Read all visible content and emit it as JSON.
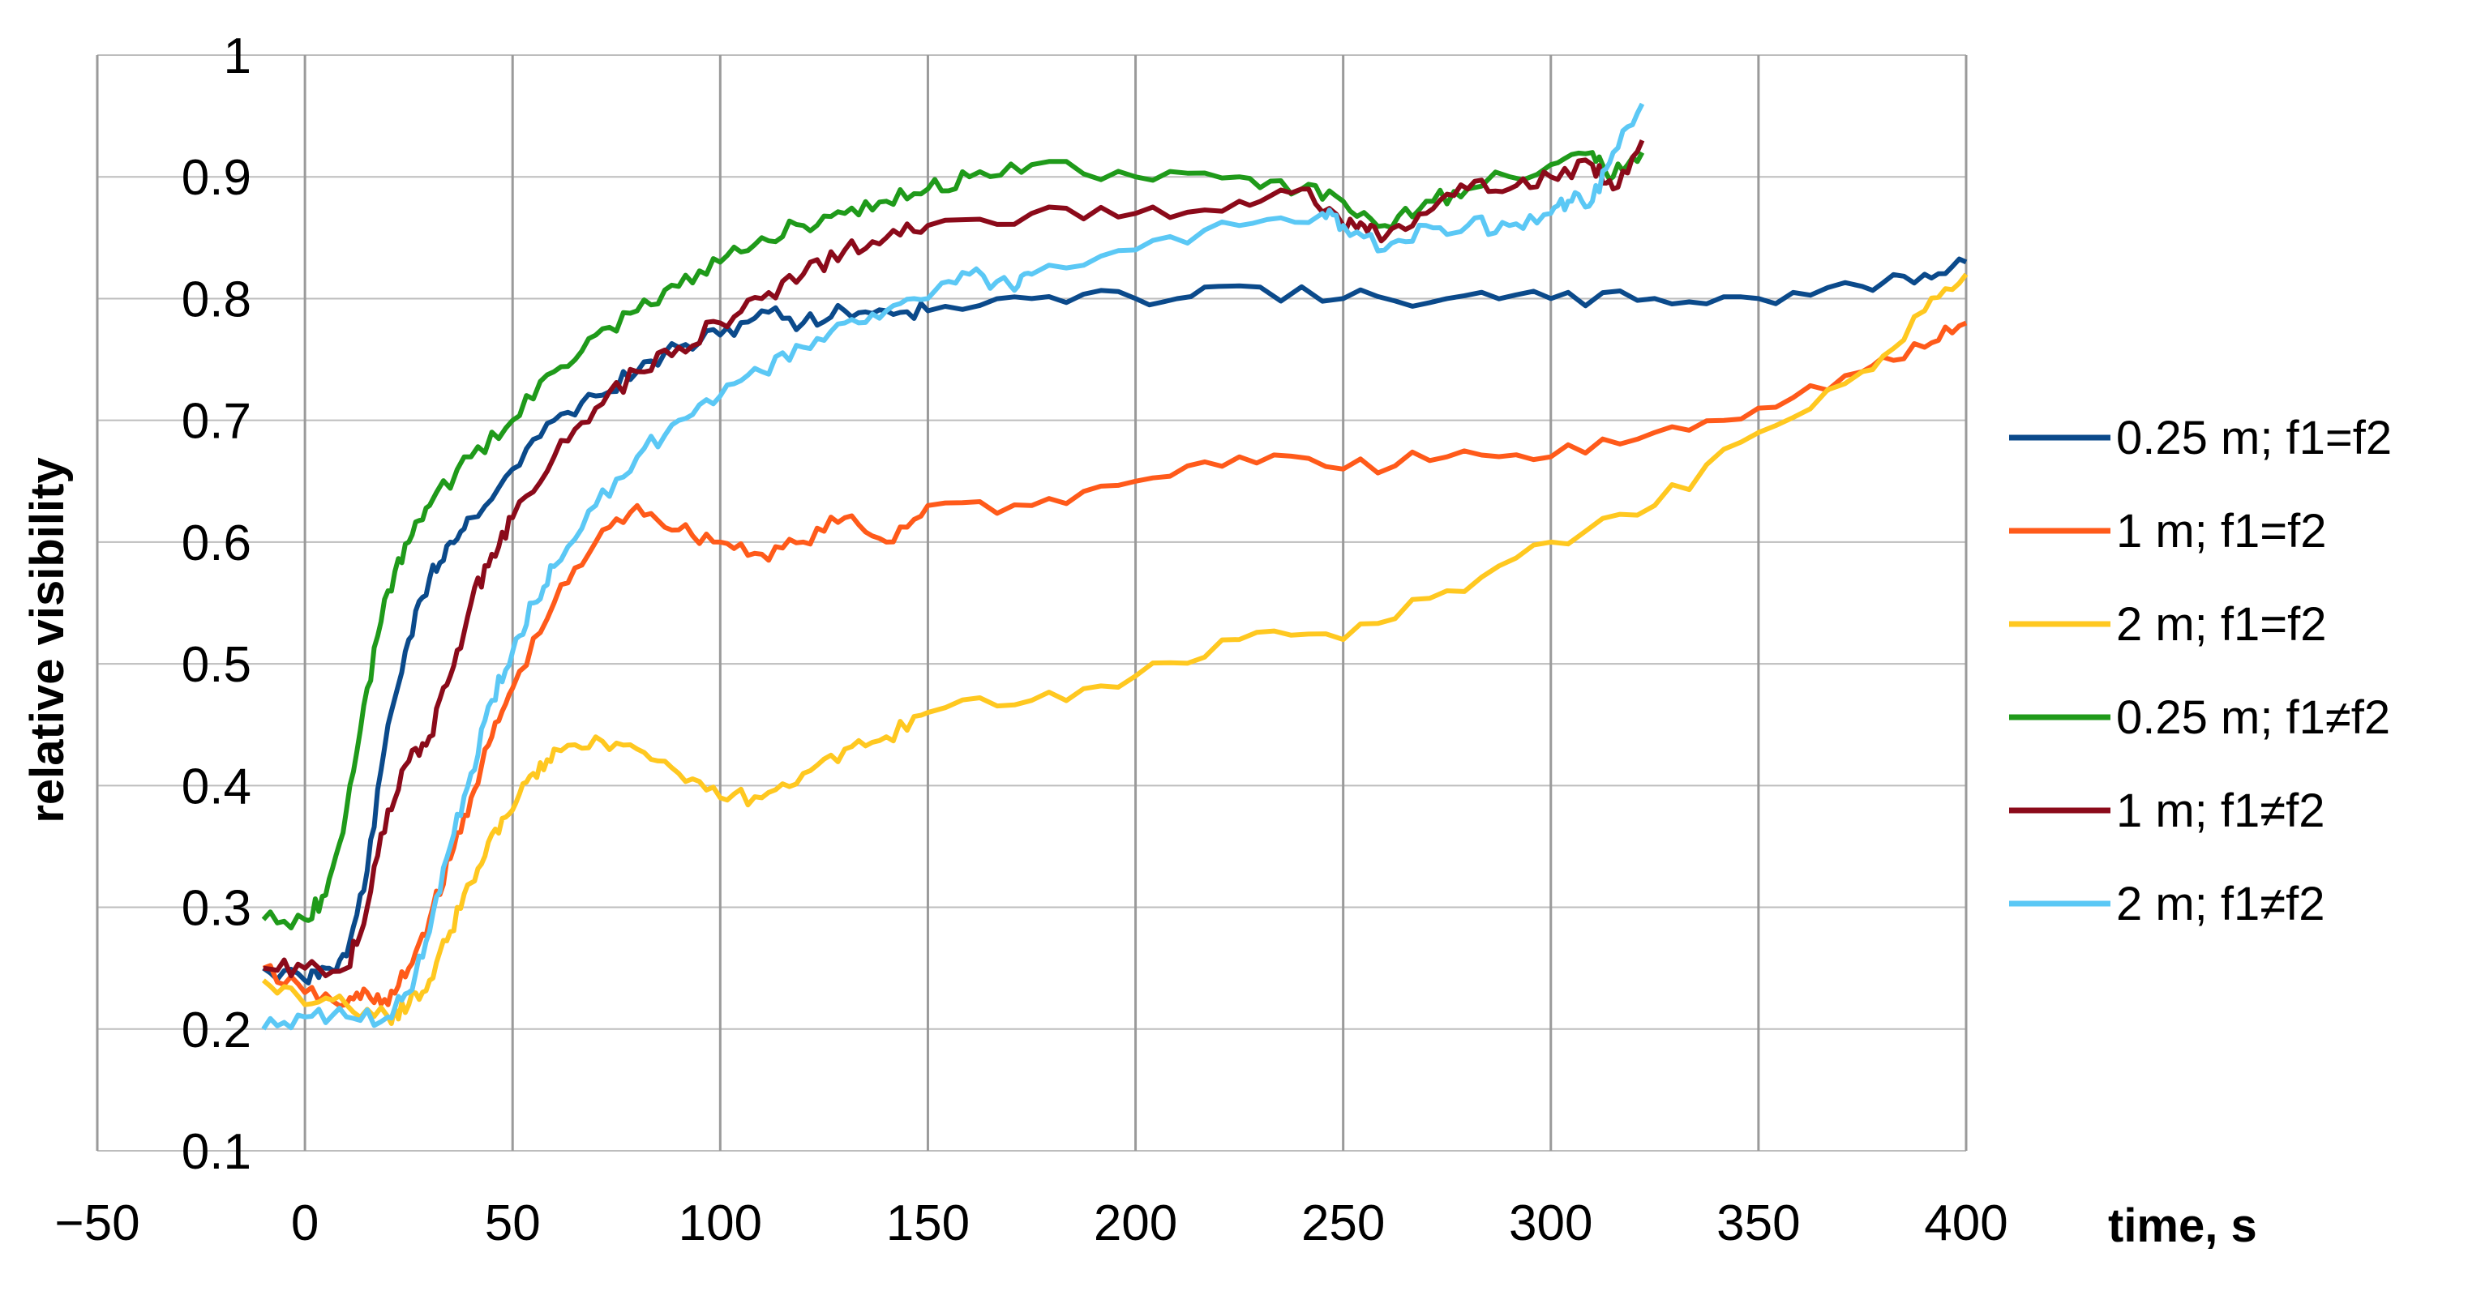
{
  "chart_data": {
    "type": "line",
    "title": "",
    "xlabel": "time, s",
    "ylabel": "relative visibility",
    "xlim": [
      -50,
      400
    ],
    "ylim": [
      0.1,
      1
    ],
    "x_ticks": [
      -50,
      0,
      50,
      100,
      150,
      200,
      250,
      300,
      350,
      400
    ],
    "x_tick_labels": [
      "−50",
      "0",
      "50",
      "100",
      "150",
      "200",
      "250",
      "300",
      "350",
      "400"
    ],
    "y_ticks": [
      0.1,
      0.2,
      0.3,
      0.4,
      0.5,
      0.6,
      0.7,
      0.8,
      0.9,
      1
    ],
    "y_tick_labels": [
      "0.1",
      "0.2",
      "0.3",
      "0.4",
      "0.5",
      "0.6",
      "0.7",
      "0.8",
      "0.9",
      "1"
    ],
    "grid": "vertical and horizontal",
    "legend_position": "right",
    "series": [
      {
        "name": "0.25 m; f1=f2",
        "color": "#0B4A8B",
        "x": [
          -10,
          0,
          5,
          10,
          15,
          20,
          25,
          30,
          35,
          40,
          50,
          60,
          70,
          80,
          90,
          100,
          110,
          120,
          130,
          140,
          150,
          175,
          200,
          220,
          250,
          275,
          300,
          325,
          350,
          375,
          390,
          400
        ],
        "y": [
          0.25,
          0.24,
          0.25,
          0.26,
          0.33,
          0.45,
          0.52,
          0.57,
          0.6,
          0.62,
          0.66,
          0.7,
          0.72,
          0.74,
          0.76,
          0.77,
          0.79,
          0.78,
          0.79,
          0.79,
          0.79,
          0.8,
          0.8,
          0.81,
          0.8,
          0.8,
          0.8,
          0.8,
          0.8,
          0.81,
          0.82,
          0.83
        ]
      },
      {
        "name": "1 m; f1=f2",
        "color": "#FF5A1A",
        "x": [
          -10,
          0,
          10,
          15,
          20,
          25,
          30,
          35,
          40,
          45,
          50,
          60,
          70,
          80,
          90,
          100,
          110,
          120,
          130,
          140,
          150,
          175,
          200,
          225,
          250,
          275,
          300,
          325,
          350,
          375,
          390,
          400
        ],
        "y": [
          0.25,
          0.23,
          0.22,
          0.23,
          0.22,
          0.25,
          0.29,
          0.34,
          0.39,
          0.44,
          0.48,
          0.55,
          0.6,
          0.63,
          0.61,
          0.6,
          0.59,
          0.6,
          0.62,
          0.6,
          0.63,
          0.63,
          0.65,
          0.67,
          0.66,
          0.67,
          0.67,
          0.69,
          0.71,
          0.74,
          0.76,
          0.78
        ]
      },
      {
        "name": "2 m; f1=f2",
        "color": "#FFC820",
        "x": [
          -10,
          0,
          10,
          20,
          25,
          30,
          35,
          40,
          45,
          50,
          55,
          60,
          70,
          80,
          90,
          100,
          110,
          120,
          130,
          140,
          150,
          175,
          200,
          225,
          250,
          275,
          300,
          325,
          350,
          375,
          390,
          400
        ],
        "y": [
          0.24,
          0.22,
          0.22,
          0.21,
          0.22,
          0.24,
          0.28,
          0.32,
          0.36,
          0.38,
          0.41,
          0.43,
          0.44,
          0.43,
          0.41,
          0.39,
          0.39,
          0.41,
          0.43,
          0.44,
          0.46,
          0.47,
          0.49,
          0.52,
          0.52,
          0.56,
          0.6,
          0.63,
          0.69,
          0.74,
          0.79,
          0.82
        ]
      },
      {
        "name": "0.25 m; f1≠f2",
        "color": "#1F9A1A",
        "x": [
          -10,
          0,
          5,
          10,
          15,
          20,
          25,
          30,
          40,
          50,
          60,
          70,
          80,
          90,
          100,
          110,
          120,
          130,
          140,
          150,
          160,
          175,
          200,
          225,
          240,
          250,
          260,
          270,
          280,
          300,
          310,
          315,
          322
        ],
        "y": [
          0.29,
          0.29,
          0.31,
          0.38,
          0.48,
          0.56,
          0.6,
          0.63,
          0.67,
          0.7,
          0.74,
          0.77,
          0.79,
          0.81,
          0.83,
          0.85,
          0.86,
          0.87,
          0.88,
          0.89,
          0.9,
          0.91,
          0.9,
          0.9,
          0.89,
          0.88,
          0.86,
          0.88,
          0.89,
          0.91,
          0.92,
          0.9,
          0.92
        ]
      },
      {
        "name": "1 m; f1≠f2",
        "color": "#8B0A1A",
        "x": [
          -10,
          0,
          10,
          15,
          20,
          25,
          30,
          35,
          40,
          45,
          50,
          60,
          70,
          80,
          90,
          100,
          110,
          120,
          130,
          140,
          150,
          175,
          200,
          225,
          240,
          250,
          255,
          260,
          270,
          280,
          290,
          300,
          310,
          315,
          322
        ],
        "y": [
          0.25,
          0.25,
          0.25,
          0.3,
          0.38,
          0.42,
          0.44,
          0.49,
          0.55,
          0.59,
          0.62,
          0.67,
          0.71,
          0.74,
          0.76,
          0.78,
          0.8,
          0.82,
          0.84,
          0.85,
          0.86,
          0.87,
          0.87,
          0.88,
          0.89,
          0.86,
          0.86,
          0.85,
          0.87,
          0.89,
          0.89,
          0.9,
          0.91,
          0.89,
          0.93
        ]
      },
      {
        "name": "2 m; f1≠f2",
        "color": "#5BC8F5",
        "x": [
          -10,
          0,
          10,
          20,
          25,
          30,
          35,
          40,
          45,
          50,
          55,
          60,
          70,
          80,
          90,
          100,
          110,
          120,
          130,
          140,
          150,
          160,
          170,
          175,
          200,
          225,
          245,
          250,
          260,
          270,
          280,
          290,
          300,
          305,
          310,
          315,
          322
        ],
        "y": [
          0.2,
          0.21,
          0.21,
          0.21,
          0.23,
          0.28,
          0.35,
          0.41,
          0.47,
          0.51,
          0.55,
          0.58,
          0.63,
          0.67,
          0.7,
          0.72,
          0.74,
          0.76,
          0.78,
          0.79,
          0.8,
          0.82,
          0.81,
          0.82,
          0.84,
          0.86,
          0.87,
          0.86,
          0.84,
          0.86,
          0.86,
          0.86,
          0.87,
          0.88,
          0.88,
          0.92,
          0.96
        ]
      }
    ]
  }
}
